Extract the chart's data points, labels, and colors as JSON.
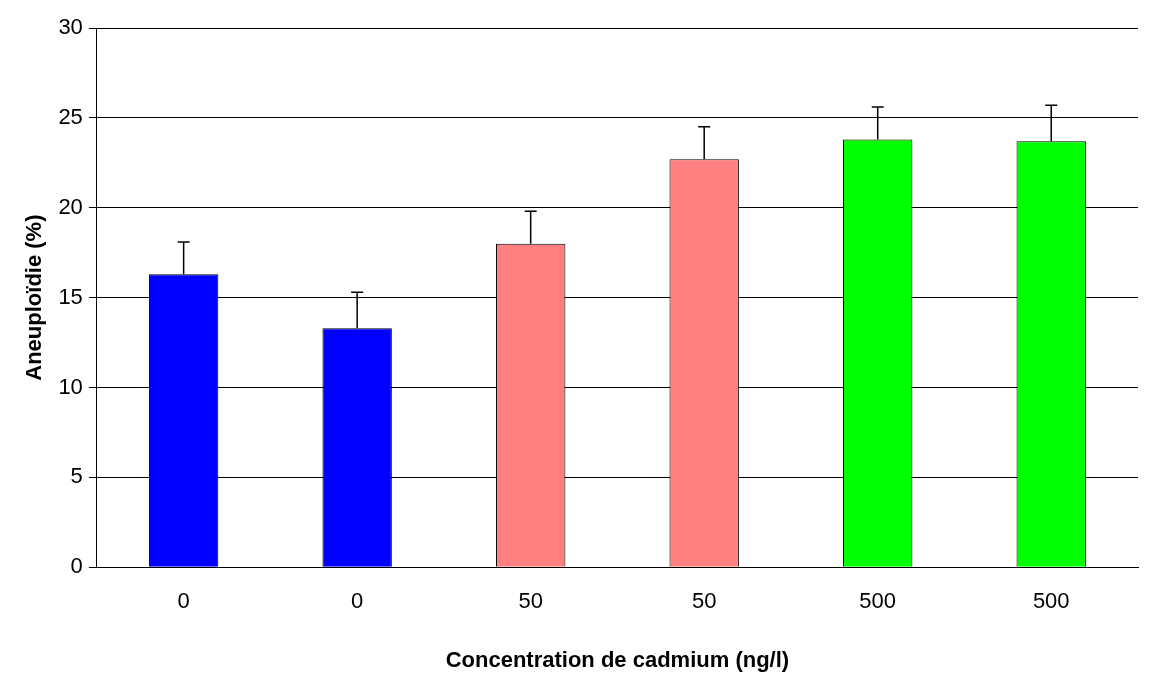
{
  "chart_data": {
    "type": "bar",
    "xlabel": "Concentration de cadmium (ng/l)",
    "ylabel": "Aneuploïdie (%)",
    "categories": [
      "0",
      "0",
      "50",
      "50",
      "500",
      "500"
    ],
    "values": [
      16.3,
      13.3,
      18.0,
      22.7,
      23.8,
      23.7
    ],
    "colors": [
      "#0000ff",
      "#0000ff",
      "#ff8080",
      "#ff8080",
      "#00ff00",
      "#00ff00"
    ],
    "errors": [
      [
        16.3,
        18.1
      ],
      [
        13.3,
        15.3
      ],
      [
        18.0,
        19.8
      ],
      [
        22.7,
        24.5
      ],
      [
        23.8,
        25.6
      ],
      [
        23.7,
        25.7
      ]
    ],
    "ylim": [
      0,
      30
    ],
    "yticks": [
      0,
      5,
      10,
      15,
      20,
      25,
      30
    ],
    "grid": "y",
    "legend": false
  }
}
